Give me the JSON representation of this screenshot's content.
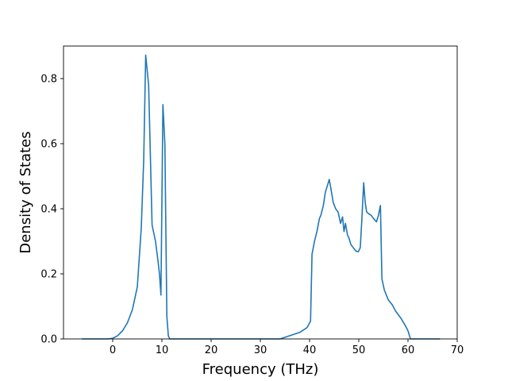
{
  "chart_data": {
    "type": "line",
    "title": "",
    "xlabel": "Frequency (THz)",
    "ylabel": "Density of States",
    "xlim": [
      -10,
      70
    ],
    "ylim": [
      0.0,
      0.9
    ],
    "xticks": [
      0,
      10,
      20,
      30,
      40,
      50,
      60,
      70
    ],
    "yticks": [
      0.0,
      0.2,
      0.4,
      0.6,
      0.8
    ],
    "xtick_labels": [
      "0",
      "10",
      "20",
      "30",
      "40",
      "50",
      "60",
      "70"
    ],
    "ytick_labels": [
      "0.0",
      "0.2",
      "0.4",
      "0.6",
      "0.8"
    ],
    "grid": false,
    "legend": "none",
    "series": [
      {
        "color": "#1f77b4",
        "x": [
          -6.3,
          -1,
          0,
          1,
          2,
          3,
          4,
          5,
          5.8,
          6.3,
          6.7,
          7.3,
          8.0,
          8.7,
          9.2,
          9.5,
          9.8,
          10.2,
          10.6,
          11.0,
          11.3,
          11.6,
          12.0,
          20,
          30,
          34,
          36,
          38,
          39.5,
          40.2,
          40.5,
          41.0,
          41.5,
          42.0,
          42.3,
          42.8,
          43.2,
          43.6,
          44.0,
          44.3,
          44.8,
          45.3,
          45.8,
          46.3,
          46.7,
          47.0,
          47.3,
          47.7,
          48.0,
          48.4,
          48.9,
          49.4,
          49.9,
          50.3,
          50.6,
          51.0,
          51.3,
          51.6,
          52.0,
          52.5,
          53.0,
          53.6,
          54.0,
          54.4,
          54.7,
          55.2,
          56.0,
          56.8,
          57.5,
          58.5,
          59.5,
          60.0,
          60.5,
          62,
          66.5
        ],
        "y": [
          0.0,
          0.0,
          0.002,
          0.01,
          0.025,
          0.05,
          0.09,
          0.16,
          0.34,
          0.55,
          0.872,
          0.78,
          0.35,
          0.3,
          0.24,
          0.2,
          0.135,
          0.72,
          0.6,
          0.07,
          0.01,
          0.0,
          0.0,
          0.0,
          0.0,
          0.0,
          0.01,
          0.02,
          0.035,
          0.055,
          0.26,
          0.3,
          0.33,
          0.37,
          0.38,
          0.41,
          0.45,
          0.47,
          0.49,
          0.465,
          0.42,
          0.4,
          0.39,
          0.355,
          0.375,
          0.33,
          0.355,
          0.32,
          0.31,
          0.29,
          0.28,
          0.27,
          0.268,
          0.28,
          0.36,
          0.48,
          0.42,
          0.39,
          0.385,
          0.38,
          0.37,
          0.36,
          0.38,
          0.41,
          0.185,
          0.15,
          0.12,
          0.105,
          0.085,
          0.065,
          0.04,
          0.025,
          0.0,
          0.0,
          0.0
        ]
      }
    ]
  }
}
